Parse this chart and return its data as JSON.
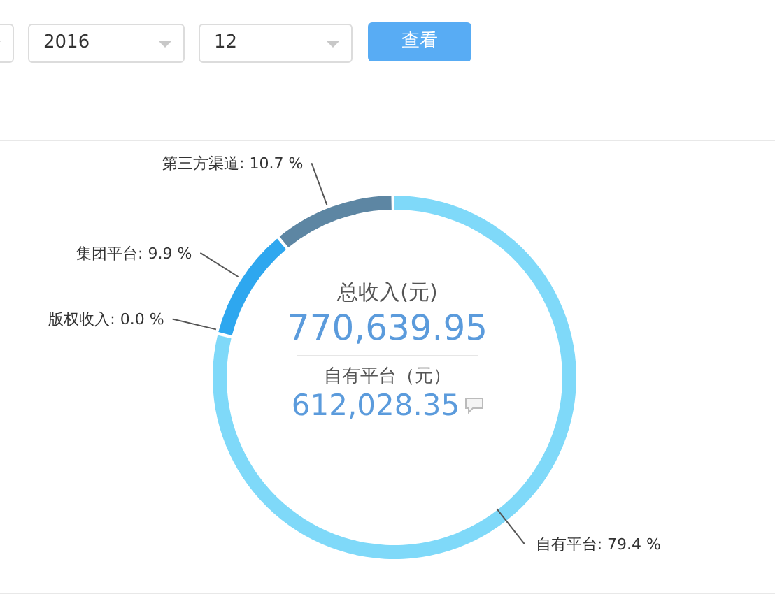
{
  "chart_data": {
    "type": "donut",
    "categories": [
      "自有平台",
      "版权收入",
      "集团平台",
      "第三方渠道"
    ],
    "values": [
      79.4,
      0.0,
      9.9,
      10.7
    ],
    "value_labels": [
      "79.4 %",
      "0.0 %",
      "9.9 %",
      "10.7 %"
    ],
    "colors": [
      "#7fd9f9",
      "#3b7fc4",
      "#2ea7ef",
      "#5d86a3"
    ],
    "annotations": [
      "2016",
      "12",
      "查看",
      "总收入(元)",
      "770,639.95",
      "自有平台（元）",
      "612,028.35"
    ]
  }
}
